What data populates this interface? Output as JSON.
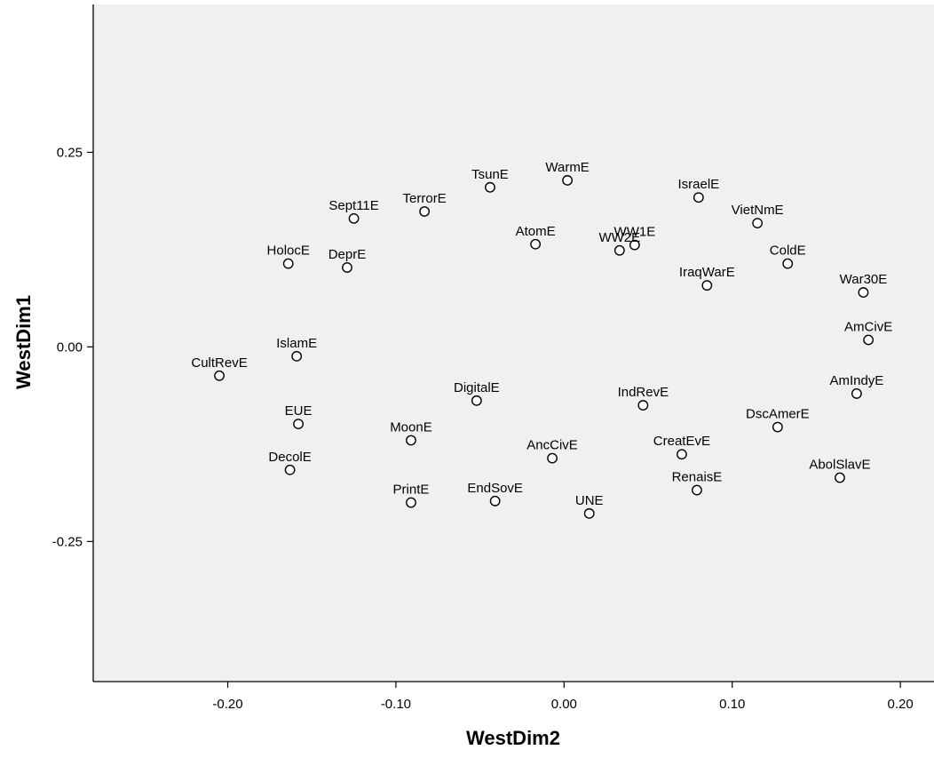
{
  "chart_data": {
    "type": "scatter",
    "title": "",
    "xlabel": "WestDim2",
    "ylabel": "WestDim1",
    "xlim": [
      -0.28,
      0.22
    ],
    "ylim": [
      -0.43,
      0.44
    ],
    "grid": false,
    "xticks": [
      -0.2,
      -0.1,
      0.0,
      0.1,
      0.2
    ],
    "xtick_labels": [
      "-0.20",
      "-0.10",
      "0.00",
      "0.10",
      "0.20"
    ],
    "yticks": [
      0.25,
      0.0,
      -0.25
    ],
    "ytick_labels": [
      "0.25",
      "0.00",
      "-0.25"
    ],
    "points": [
      {
        "label": "TsunE",
        "x": -0.044,
        "y": 0.205
      },
      {
        "label": "WarmE",
        "x": 0.002,
        "y": 0.214
      },
      {
        "label": "IsraelE",
        "x": 0.08,
        "y": 0.192
      },
      {
        "label": "Sept11E",
        "x": -0.125,
        "y": 0.165
      },
      {
        "label": "TerrorE",
        "x": -0.083,
        "y": 0.174
      },
      {
        "label": "VietNmE",
        "x": 0.115,
        "y": 0.159
      },
      {
        "label": "AtomE",
        "x": -0.017,
        "y": 0.132
      },
      {
        "label": "WW1E",
        "x": 0.042,
        "y": 0.131
      },
      {
        "label": "WW2E",
        "x": 0.033,
        "y": 0.124
      },
      {
        "label": "HolocE",
        "x": -0.164,
        "y": 0.107
      },
      {
        "label": "DeprE",
        "x": -0.129,
        "y": 0.102
      },
      {
        "label": "ColdE",
        "x": 0.133,
        "y": 0.107
      },
      {
        "label": "IraqWarE",
        "x": 0.085,
        "y": 0.079
      },
      {
        "label": "War30E",
        "x": 0.178,
        "y": 0.07
      },
      {
        "label": "AmCivE",
        "x": 0.181,
        "y": 0.009
      },
      {
        "label": "IslamE",
        "x": -0.159,
        "y": -0.012
      },
      {
        "label": "CultRevE",
        "x": -0.205,
        "y": -0.037
      },
      {
        "label": "AmIndyE",
        "x": 0.174,
        "y": -0.06
      },
      {
        "label": "DigitalE",
        "x": -0.052,
        "y": -0.069
      },
      {
        "label": "IndRevE",
        "x": 0.047,
        "y": -0.075
      },
      {
        "label": "EUE",
        "x": -0.158,
        "y": -0.099
      },
      {
        "label": "DscAmerE",
        "x": 0.127,
        "y": -0.103
      },
      {
        "label": "MoonE",
        "x": -0.091,
        "y": -0.12
      },
      {
        "label": "CreatEvE",
        "x": 0.07,
        "y": -0.138
      },
      {
        "label": "AncCivE",
        "x": -0.007,
        "y": -0.143
      },
      {
        "label": "DecolE",
        "x": -0.163,
        "y": -0.158
      },
      {
        "label": "AbolSlavE",
        "x": 0.164,
        "y": -0.168
      },
      {
        "label": "RenaisE",
        "x": 0.079,
        "y": -0.184
      },
      {
        "label": "EndSovE",
        "x": -0.041,
        "y": -0.198
      },
      {
        "label": "PrintE",
        "x": -0.091,
        "y": -0.2
      },
      {
        "label": "UNE",
        "x": 0.015,
        "y": -0.214
      }
    ]
  },
  "colors": {
    "plot_background": "#f0f0f0",
    "axis": "#000000",
    "marker_stroke": "#000000",
    "marker_fill": "#ffffff"
  }
}
